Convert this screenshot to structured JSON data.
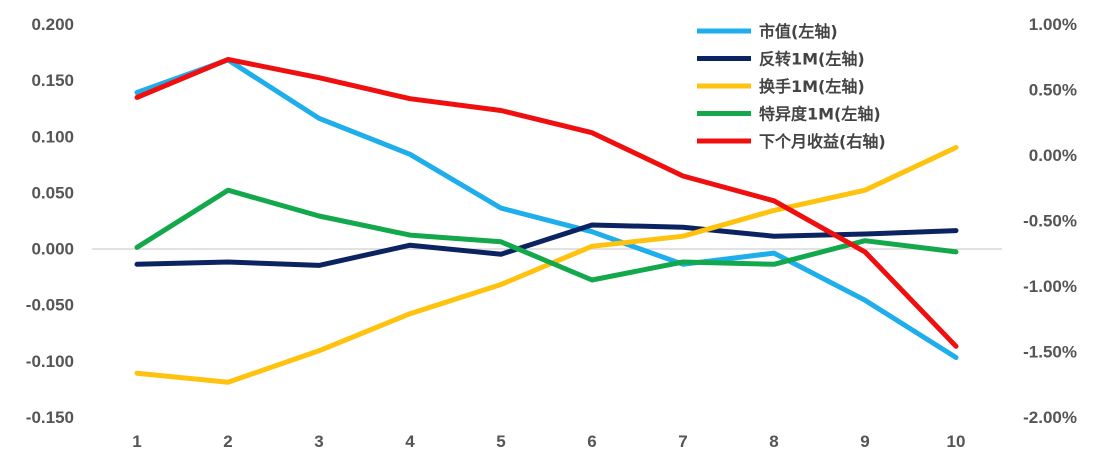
{
  "chart_data": {
    "type": "line",
    "categories": [
      "1",
      "2",
      "3",
      "4",
      "5",
      "6",
      "7",
      "8",
      "9",
      "10"
    ],
    "y_left": {
      "ylim": [
        -0.15,
        0.2
      ],
      "ticks": [
        "0.200",
        "0.150",
        "0.100",
        "0.050",
        "0.000",
        "-0.050",
        "-0.100",
        "-0.150"
      ],
      "tick_values": [
        0.2,
        0.15,
        0.1,
        0.05,
        0.0,
        -0.05,
        -0.1,
        -0.15
      ]
    },
    "y_right": {
      "ylim": [
        -2.0,
        1.0
      ],
      "ticks": [
        "1.00%",
        "0.50%",
        "0.00%",
        "-0.50%",
        "-1.00%",
        "-1.50%",
        "-2.00%"
      ],
      "tick_values": [
        1.0,
        0.5,
        0.0,
        -0.5,
        -1.0,
        -1.5,
        -2.0
      ]
    },
    "legend_position": "top-right",
    "series": [
      {
        "name": "市值(左轴)",
        "axis": "left",
        "color": "#1EAEEB",
        "values": [
          0.139,
          0.168,
          0.116,
          0.084,
          0.036,
          0.015,
          -0.014,
          -0.004,
          -0.046,
          -0.097
        ]
      },
      {
        "name": "反转1M(左轴)",
        "axis": "left",
        "color": "#0B2461",
        "values": [
          -0.014,
          -0.012,
          -0.015,
          0.003,
          -0.005,
          0.021,
          0.019,
          0.011,
          0.013,
          0.016
        ]
      },
      {
        "name": "换手1M(左轴)",
        "axis": "left",
        "color": "#FFC20E",
        "values": [
          -0.111,
          -0.119,
          -0.091,
          -0.058,
          -0.032,
          0.002,
          0.011,
          0.034,
          0.052,
          0.09
        ]
      },
      {
        "name": "特异度1M(左轴)",
        "axis": "left",
        "color": "#12A84B",
        "values": [
          0.001,
          0.052,
          0.029,
          0.012,
          0.006,
          -0.028,
          -0.012,
          -0.014,
          0.007,
          -0.003
        ]
      },
      {
        "name": "下个月收益(右轴)",
        "axis": "right",
        "color": "#F00F0F",
        "values": [
          0.44,
          0.73,
          0.59,
          0.43,
          0.34,
          0.17,
          -0.16,
          -0.35,
          -0.74,
          -1.46
        ]
      }
    ]
  }
}
